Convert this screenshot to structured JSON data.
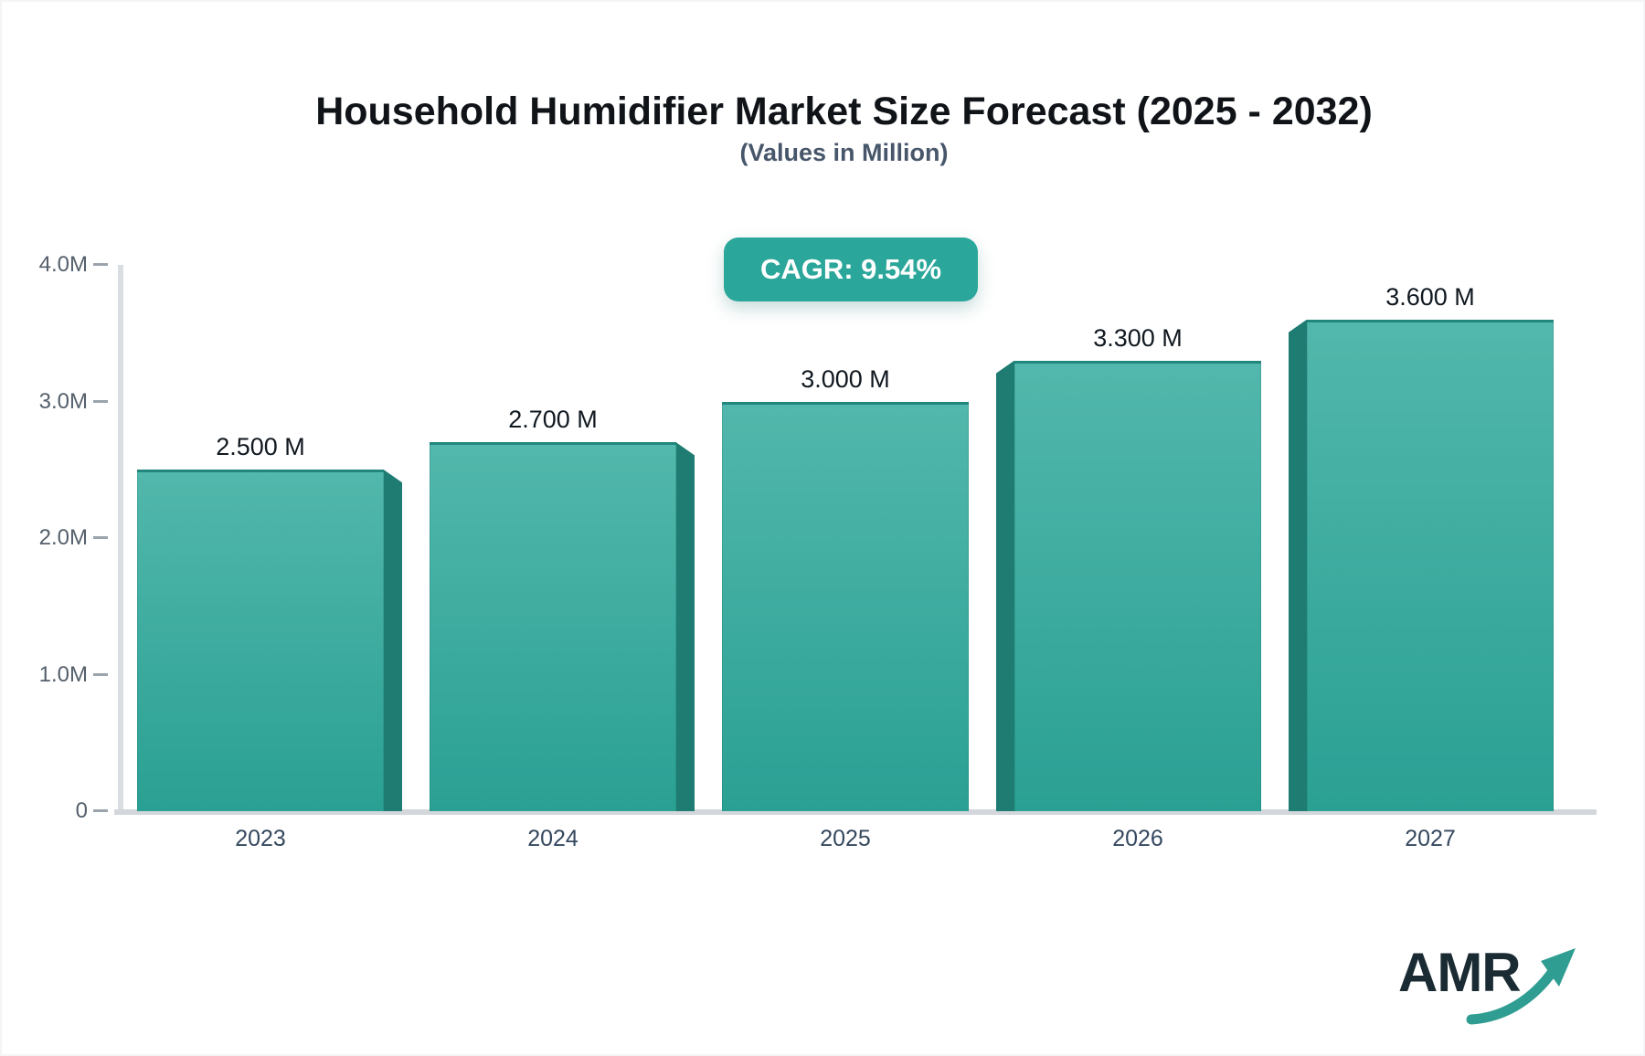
{
  "header": {
    "title": "Household Humidifier Market Size Forecast (2025 - 2032)",
    "subtitle": "(Values in Million)"
  },
  "badge": {
    "label": "CAGR: 9.54%"
  },
  "chart_data": {
    "type": "bar",
    "title": "Household Humidifier Market Size Forecast (2025 - 2032)",
    "subtitle": "(Values in Million)",
    "categories": [
      "2023",
      "2024",
      "2025",
      "2026",
      "2027"
    ],
    "values": [
      2.5,
      2.7,
      3.0,
      3.3,
      3.6
    ],
    "value_labels": [
      "2.500 M",
      "2.700 M",
      "3.000 M",
      "3.300 M",
      "3.600 M"
    ],
    "unit": "Million",
    "xlabel": "",
    "ylabel": "",
    "ylim": [
      0,
      4
    ],
    "yticks": [
      {
        "value": 4,
        "label": "4.0M"
      },
      {
        "value": 3,
        "label": "3.0M"
      },
      {
        "value": 2,
        "label": "2.0M"
      },
      {
        "value": 1,
        "label": "1.0M"
      },
      {
        "value": 0,
        "label": "0"
      }
    ],
    "grid": "off",
    "legend": "none",
    "annotations": [
      "CAGR: 9.54%"
    ]
  },
  "logo": {
    "text": "AMR"
  },
  "colors": {
    "accent": "#2aa69a",
    "badge_bg": "#2aa69a",
    "bar_gradient_top": "#52b7ac",
    "bar_gradient_bottom": "#2aa093",
    "bar_side": "#1f7c72",
    "axis_line": "#d3d7db",
    "tick_text": "#55606b",
    "x_label_text": "#35485f",
    "logo_arrow": "#2f9d92"
  }
}
